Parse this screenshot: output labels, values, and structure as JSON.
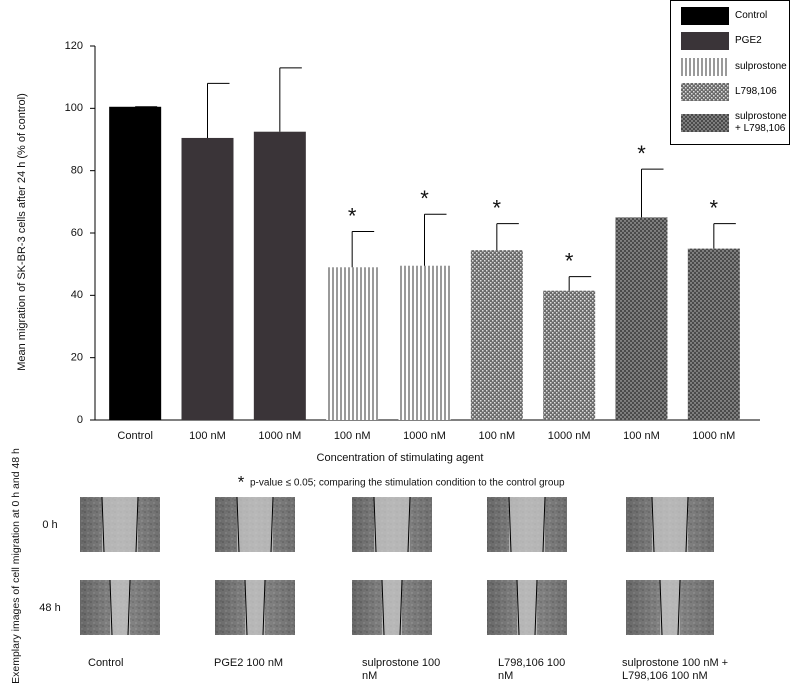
{
  "chart_data": {
    "type": "bar",
    "y_label": "Mean migration of SK-BR-3 cells after 24 h (% of control)",
    "x_label": "Concentration of stimulating agent",
    "categories": [
      "Control",
      "100 nM",
      "1000 nM",
      "100 nM",
      "1000 nM",
      "100 nM",
      "1000 nM",
      "100 nM",
      "1000 nM"
    ],
    "series": [
      {
        "name": "Control",
        "color": "#000000",
        "pattern": "solid",
        "values": [
          100.5,
          null,
          null,
          null,
          null,
          null,
          null,
          null,
          null
        ],
        "errors": [
          0,
          null,
          null,
          null,
          null,
          null,
          null,
          null,
          null
        ]
      },
      {
        "name": "PGE2",
        "color": "#3a3438",
        "pattern": "solid",
        "values": [
          null,
          90.5,
          92.5,
          null,
          null,
          null,
          null,
          null,
          null
        ],
        "errors": [
          null,
          17.5,
          20.5,
          null,
          null,
          null,
          null,
          null,
          null
        ]
      },
      {
        "name": "sulprostone",
        "color": "#9a9a9a",
        "pattern": "vertical-stripes",
        "values": [
          null,
          null,
          null,
          49,
          49.5,
          null,
          null,
          null,
          null
        ],
        "errors": [
          null,
          null,
          null,
          11.5,
          16.5,
          null,
          null,
          null,
          null
        ]
      },
      {
        "name": "L798,106",
        "color": "#6a6a6a",
        "pattern": "crosshatch",
        "values": [
          null,
          null,
          null,
          null,
          null,
          54.5,
          41.5,
          null,
          null
        ],
        "errors": [
          null,
          null,
          null,
          null,
          null,
          8.5,
          4.5,
          null,
          null
        ]
      },
      {
        "name": "sulprostone + L798,106",
        "color": "#4a4a4a",
        "pattern": "dots",
        "values": [
          null,
          null,
          null,
          null,
          null,
          null,
          null,
          65,
          55
        ],
        "errors": [
          null,
          null,
          null,
          null,
          null,
          null,
          null,
          15.5,
          8
        ]
      }
    ],
    "significant": [
      false,
      false,
      false,
      true,
      true,
      true,
      true,
      true,
      true
    ],
    "significance_marker": "*",
    "footnote": "p-value ≤ 0.05; comparing the stimulation condition to the control group",
    "ylim": [
      0,
      120
    ],
    "yticks": [
      0,
      20,
      40,
      60,
      80,
      100,
      120
    ],
    "legend": "top-right"
  },
  "images": {
    "y_label": "Exemplary images of cell migration at 0 h and 48 h",
    "rows": [
      "0 h",
      "48 h"
    ],
    "columns": [
      "Control",
      "PGE2 100 nM",
      "sulprostone 100 nM",
      "L798,106 100 nM",
      "sulprostone 100 nM + L798,106 100 nM"
    ]
  }
}
